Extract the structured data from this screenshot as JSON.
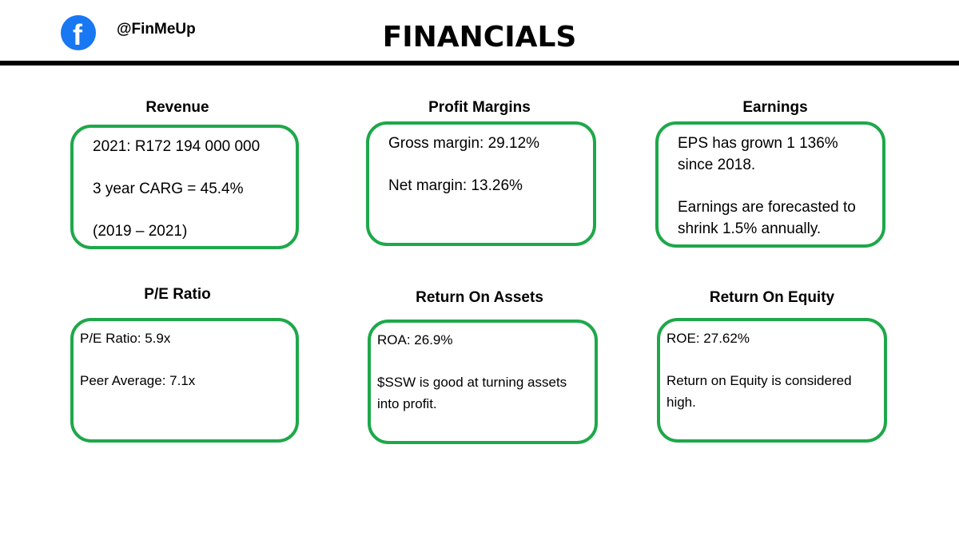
{
  "header": {
    "handle": "@FinMeUp",
    "title": "FINANCIALS"
  },
  "cards": [
    {
      "title": "Revenue",
      "lines": [
        "2021: R172 194 000 000",
        "3 year CARG = 45.4%",
        "(2019 – 2021)"
      ]
    },
    {
      "title": "Profit Margins",
      "lines": [
        "Gross margin: 29.12%",
        "Net margin: 13.26%"
      ]
    },
    {
      "title": "Earnings",
      "lines": [
        "EPS has grown 1 136% since 2018.",
        "Earnings are forecasted to shrink 1.5% annually."
      ]
    },
    {
      "title": "P/E Ratio",
      "lines": [
        "P/E Ratio: 5.9x",
        "Peer Average: 7.1x"
      ]
    },
    {
      "title": "Return On Assets",
      "lines": [
        "ROA: 26.9%",
        "$SSW is good at turning assets into profit."
      ]
    },
    {
      "title": "Return On Equity",
      "lines": [
        "ROE: 27.62%",
        "Return on Equity is considered high."
      ]
    }
  ]
}
